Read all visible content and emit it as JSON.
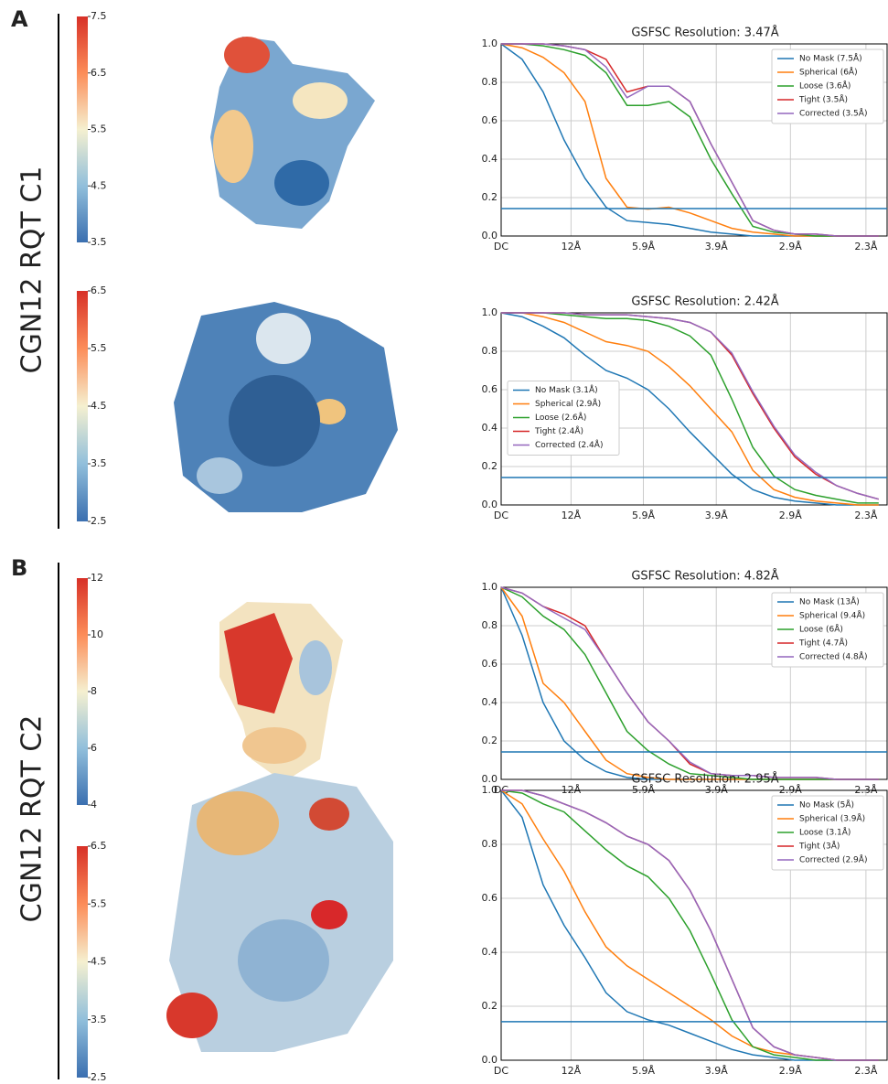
{
  "figure": {
    "panels": [
      {
        "label": "A",
        "title": "CGN12 RQT C1",
        "colorbars": [
          {
            "lim": [
              3.5,
              7.5
            ],
            "ticks": [
              3.5,
              4.5,
              5.5,
              6.5,
              7.5
            ]
          },
          {
            "lim": [
              2.5,
              6.5
            ],
            "ticks": [
              2.5,
              3.5,
              4.5,
              5.5,
              6.5
            ]
          }
        ]
      },
      {
        "label": "B",
        "title": "CGN12 RQT C2",
        "colorbars": [
          {
            "lim": [
              4,
              12
            ],
            "ticks": [
              4,
              6,
              8,
              10,
              12
            ]
          },
          {
            "lim": [
              2.5,
              6.5
            ],
            "ticks": [
              2.5,
              3.5,
              4.5,
              5.5,
              6.5
            ]
          }
        ]
      }
    ]
  },
  "chart_data": [
    {
      "type": "line",
      "title": "GSFSC Resolution: 3.47Å",
      "legend": "upper right",
      "grid": true,
      "threshold": 0.143,
      "threshold_color": "#1f77b4",
      "x": [
        0,
        0.025,
        0.05,
        0.075,
        0.1,
        0.125,
        0.15,
        0.175,
        0.2,
        0.225,
        0.25,
        0.275,
        0.3,
        0.325,
        0.35,
        0.375,
        0.4,
        0.425,
        0.45
      ],
      "xlim": [
        0,
        0.46
      ],
      "xticks": [
        {
          "value": 0,
          "label": "DC"
        },
        {
          "value": 0.0833,
          "label": "12Å"
        },
        {
          "value": 0.1695,
          "label": "5.9Å"
        },
        {
          "value": 0.2564,
          "label": "3.9Å"
        },
        {
          "value": 0.3448,
          "label": "2.9Å"
        },
        {
          "value": 0.4348,
          "label": "2.3Å"
        }
      ],
      "ylim": [
        0,
        1
      ],
      "yticks": [
        {
          "value": 0,
          "label": "0.0"
        },
        0.2,
        0.4,
        0.6,
        0.8,
        {
          "value": 1,
          "label": "1.0"
        }
      ],
      "series": [
        {
          "name": "No Mask (7.5Å)",
          "color": "#1f77b4",
          "values": [
            1,
            0.92,
            0.75,
            0.5,
            0.3,
            0.15,
            0.08,
            0.07,
            0.06,
            0.04,
            0.02,
            0.01,
            0,
            0,
            0,
            0,
            0,
            0,
            0
          ]
        },
        {
          "name": "Spherical (6Å)",
          "color": "#ff7f0e",
          "values": [
            1,
            0.98,
            0.93,
            0.85,
            0.7,
            0.3,
            0.15,
            0.14,
            0.15,
            0.12,
            0.08,
            0.04,
            0.02,
            0.01,
            0,
            0,
            0,
            0,
            0
          ]
        },
        {
          "name": "Loose (3.6Å)",
          "color": "#2ca02c",
          "values": [
            1,
            1,
            0.99,
            0.97,
            0.94,
            0.85,
            0.68,
            0.68,
            0.7,
            0.62,
            0.4,
            0.22,
            0.05,
            0.02,
            0.01,
            0,
            0,
            0,
            0
          ]
        },
        {
          "name": "Tight (3.5Å)",
          "color": "#d62728",
          "values": [
            1,
            1,
            1,
            0.99,
            0.97,
            0.92,
            0.75,
            0.78,
            0.78,
            0.7,
            0.48,
            0.28,
            0.08,
            0.03,
            0.01,
            0.01,
            0,
            0,
            0
          ]
        },
        {
          "name": "Corrected (3.5Å)",
          "color": "#9467bd",
          "values": [
            1,
            1,
            1,
            0.99,
            0.97,
            0.88,
            0.72,
            0.78,
            0.78,
            0.7,
            0.48,
            0.28,
            0.08,
            0.03,
            0.01,
            0.01,
            0,
            0,
            0
          ]
        }
      ]
    },
    {
      "type": "line",
      "title": "GSFSC Resolution: 2.42Å",
      "legend": "center left",
      "grid": true,
      "threshold": 0.143,
      "threshold_color": "#1f77b4",
      "x": [
        0,
        0.025,
        0.05,
        0.075,
        0.1,
        0.125,
        0.15,
        0.175,
        0.2,
        0.225,
        0.25,
        0.275,
        0.3,
        0.325,
        0.35,
        0.375,
        0.4,
        0.425,
        0.45
      ],
      "xlim": [
        0,
        0.46
      ],
      "xticks": [
        {
          "value": 0,
          "label": "DC"
        },
        {
          "value": 0.0833,
          "label": "12Å"
        },
        {
          "value": 0.1695,
          "label": "5.9Å"
        },
        {
          "value": 0.2564,
          "label": "3.9Å"
        },
        {
          "value": 0.3448,
          "label": "2.9Å"
        },
        {
          "value": 0.4348,
          "label": "2.3Å"
        }
      ],
      "ylim": [
        0,
        1
      ],
      "yticks": [
        {
          "value": 0,
          "label": "0.0"
        },
        0.2,
        0.4,
        0.6,
        0.8,
        {
          "value": 1,
          "label": "1.0"
        }
      ],
      "series": [
        {
          "name": "No Mask (3.1Å)",
          "color": "#1f77b4",
          "values": [
            1,
            0.98,
            0.93,
            0.87,
            0.78,
            0.7,
            0.66,
            0.6,
            0.5,
            0.38,
            0.27,
            0.16,
            0.08,
            0.04,
            0.02,
            0.01,
            0,
            0,
            0
          ]
        },
        {
          "name": "Spherical (2.9Å)",
          "color": "#ff7f0e",
          "values": [
            1,
            1,
            0.98,
            0.95,
            0.9,
            0.85,
            0.83,
            0.8,
            0.72,
            0.62,
            0.5,
            0.38,
            0.18,
            0.08,
            0.04,
            0.02,
            0.01,
            0,
            0
          ]
        },
        {
          "name": "Loose (2.6Å)",
          "color": "#2ca02c",
          "values": [
            1,
            1,
            1,
            0.99,
            0.98,
            0.97,
            0.97,
            0.96,
            0.93,
            0.88,
            0.78,
            0.55,
            0.3,
            0.15,
            0.08,
            0.05,
            0.03,
            0.01,
            0.01
          ]
        },
        {
          "name": "Tight (2.4Å)",
          "color": "#d62728",
          "values": [
            1,
            1,
            1,
            1,
            0.99,
            0.99,
            0.99,
            0.98,
            0.97,
            0.95,
            0.9,
            0.78,
            0.58,
            0.4,
            0.25,
            0.16,
            0.1,
            0.06,
            0.03
          ]
        },
        {
          "name": "Corrected (2.4Å)",
          "color": "#9467bd",
          "values": [
            1,
            1,
            1,
            1,
            0.99,
            0.99,
            0.99,
            0.98,
            0.97,
            0.95,
            0.9,
            0.79,
            0.59,
            0.41,
            0.26,
            0.17,
            0.1,
            0.06,
            0.03
          ]
        }
      ]
    },
    {
      "type": "line",
      "title": "GSFSC Resolution: 4.82Å",
      "legend": "upper right",
      "grid": true,
      "threshold": 0.143,
      "threshold_color": "#1f77b4",
      "x": [
        0,
        0.025,
        0.05,
        0.075,
        0.1,
        0.125,
        0.15,
        0.175,
        0.2,
        0.225,
        0.25,
        0.275,
        0.3,
        0.325,
        0.35,
        0.375,
        0.4,
        0.425,
        0.45
      ],
      "xlim": [
        0,
        0.46
      ],
      "xticks": [
        {
          "value": 0,
          "label": "DC"
        },
        {
          "value": 0.0833,
          "label": "12Å"
        },
        {
          "value": 0.1695,
          "label": "5.9Å"
        },
        {
          "value": 0.2564,
          "label": "3.9Å"
        },
        {
          "value": 0.3448,
          "label": "2.9Å"
        },
        {
          "value": 0.4348,
          "label": "2.3Å"
        }
      ],
      "ylim": [
        0,
        1
      ],
      "yticks": [
        {
          "value": 0,
          "label": "0.0"
        },
        0.2,
        0.4,
        0.6,
        0.8,
        {
          "value": 1,
          "label": "1.0"
        }
      ],
      "series": [
        {
          "name": "No Mask (13Å)",
          "color": "#1f77b4",
          "values": [
            1,
            0.75,
            0.4,
            0.2,
            0.1,
            0.04,
            0.01,
            0,
            0,
            0,
            0,
            0,
            0,
            0,
            0,
            0,
            0,
            0,
            0
          ]
        },
        {
          "name": "Spherical (9.4Å)",
          "color": "#ff7f0e",
          "values": [
            1,
            0.85,
            0.5,
            0.4,
            0.25,
            0.1,
            0.03,
            0.01,
            0,
            0,
            0,
            0,
            0,
            0,
            0,
            0,
            0,
            0,
            0
          ]
        },
        {
          "name": "Loose (6Å)",
          "color": "#2ca02c",
          "values": [
            1,
            0.95,
            0.85,
            0.78,
            0.65,
            0.45,
            0.25,
            0.15,
            0.08,
            0.03,
            0.02,
            0.01,
            0,
            0,
            0,
            0,
            0,
            0,
            0
          ]
        },
        {
          "name": "Tight (4.7Å)",
          "color": "#d62728",
          "values": [
            1,
            0.97,
            0.9,
            0.86,
            0.8,
            0.62,
            0.45,
            0.3,
            0.2,
            0.08,
            0.03,
            0.02,
            0.02,
            0.01,
            0.01,
            0.01,
            0,
            0,
            0
          ]
        },
        {
          "name": "Corrected (4.8Å)",
          "color": "#9467bd",
          "values": [
            1,
            0.97,
            0.9,
            0.84,
            0.78,
            0.62,
            0.45,
            0.3,
            0.2,
            0.09,
            0.03,
            0.02,
            0.02,
            0.01,
            0.01,
            0.01,
            0,
            0,
            0
          ]
        }
      ]
    },
    {
      "type": "line",
      "title": "GSFSC Resolution: 2.95Å",
      "legend": "upper right",
      "grid": true,
      "threshold": 0.143,
      "threshold_color": "#1f77b4",
      "x": [
        0,
        0.025,
        0.05,
        0.075,
        0.1,
        0.125,
        0.15,
        0.175,
        0.2,
        0.225,
        0.25,
        0.275,
        0.3,
        0.325,
        0.35,
        0.375,
        0.4,
        0.425,
        0.45
      ],
      "xlim": [
        0,
        0.46
      ],
      "xticks": [
        {
          "value": 0,
          "label": "DC"
        },
        {
          "value": 0.0833,
          "label": "12Å"
        },
        {
          "value": 0.1695,
          "label": "5.9Å"
        },
        {
          "value": 0.2564,
          "label": "3.9Å"
        },
        {
          "value": 0.3448,
          "label": "2.9Å"
        },
        {
          "value": 0.4348,
          "label": "2.3Å"
        }
      ],
      "ylim": [
        0,
        1
      ],
      "yticks": [
        {
          "value": 0,
          "label": "0.0"
        },
        0.2,
        0.4,
        0.6,
        0.8,
        {
          "value": 1,
          "label": "1.0"
        }
      ],
      "series": [
        {
          "name": "No Mask (5Å)",
          "color": "#1f77b4",
          "values": [
            1,
            0.9,
            0.65,
            0.5,
            0.38,
            0.25,
            0.18,
            0.15,
            0.13,
            0.1,
            0.07,
            0.04,
            0.02,
            0.01,
            0,
            0,
            0,
            0,
            0
          ]
        },
        {
          "name": "Spherical (3.9Å)",
          "color": "#ff7f0e",
          "values": [
            1,
            0.95,
            0.82,
            0.7,
            0.55,
            0.42,
            0.35,
            0.3,
            0.25,
            0.2,
            0.15,
            0.09,
            0.05,
            0.03,
            0.02,
            0.01,
            0,
            0,
            0
          ]
        },
        {
          "name": "Loose (3.1Å)",
          "color": "#2ca02c",
          "values": [
            1,
            0.99,
            0.95,
            0.92,
            0.85,
            0.78,
            0.72,
            0.68,
            0.6,
            0.48,
            0.32,
            0.15,
            0.05,
            0.02,
            0.01,
            0,
            0,
            0,
            0
          ]
        },
        {
          "name": "Tight (3Å)",
          "color": "#d62728",
          "values": [
            1,
            1,
            0.98,
            0.95,
            0.92,
            0.88,
            0.83,
            0.8,
            0.74,
            0.63,
            0.48,
            0.3,
            0.12,
            0.05,
            0.02,
            0.01,
            0,
            0,
            0
          ]
        },
        {
          "name": "Corrected (2.9Å)",
          "color": "#9467bd",
          "values": [
            1,
            1,
            0.98,
            0.95,
            0.92,
            0.88,
            0.83,
            0.8,
            0.74,
            0.63,
            0.48,
            0.3,
            0.12,
            0.05,
            0.02,
            0.01,
            0,
            0,
            0
          ]
        }
      ]
    }
  ]
}
